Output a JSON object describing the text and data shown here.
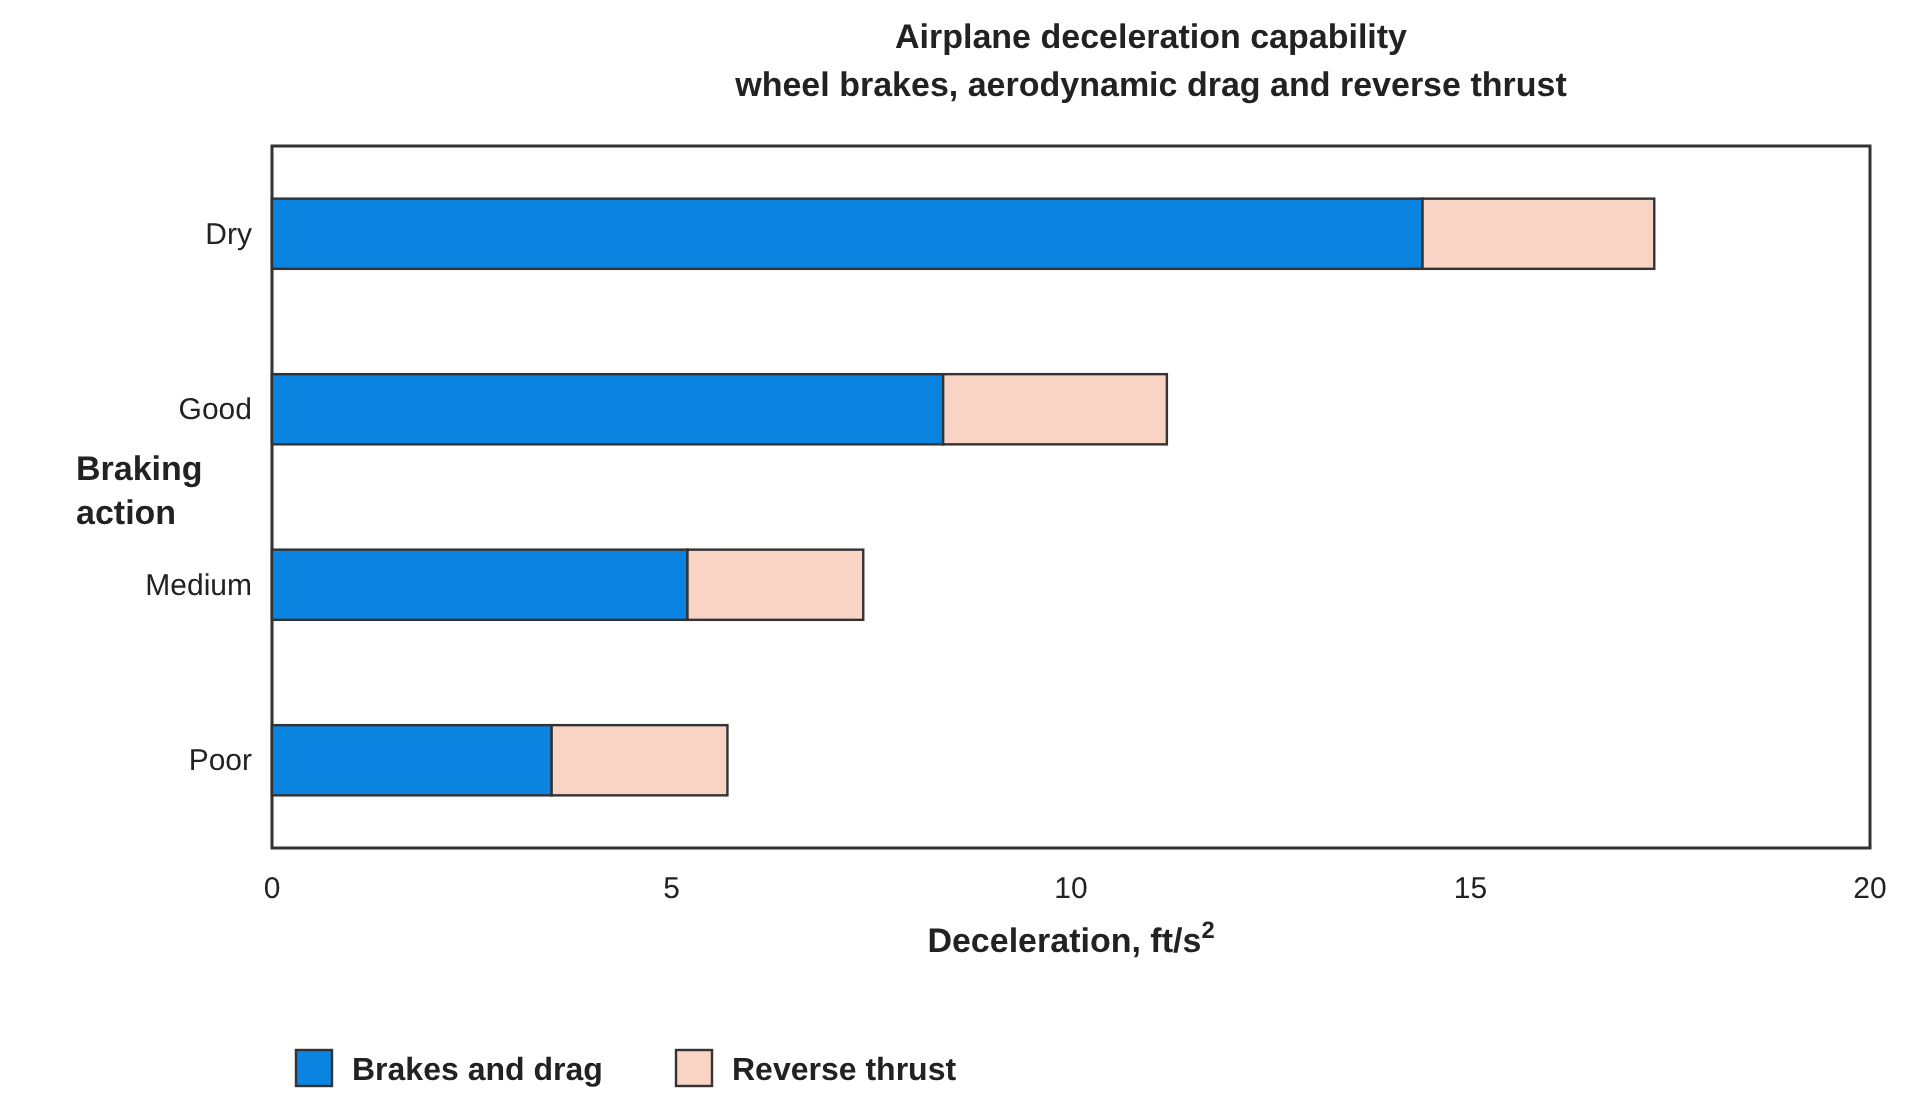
{
  "chart_data": {
    "type": "bar",
    "orientation": "horizontal",
    "stacked": true,
    "title": "Airplane deceleration capability\nwheel brakes, aerodynamic drag and reverse thrust",
    "xlabel": "Deceleration, ft/s$^{2}$",
    "ylabel": "Braking\naction",
    "categories": [
      "Dry",
      "Good",
      "Medium",
      "Poor"
    ],
    "series": [
      {
        "name": "Brakes and drag",
        "color": "#0a84e0",
        "values": [
          14.4,
          8.4,
          5.2,
          3.5
        ]
      },
      {
        "name": "Reverse thrust",
        "color": "#f9d3c4",
        "values": [
          2.9,
          2.8,
          2.2,
          2.2
        ]
      }
    ],
    "xlim": [
      0,
      20
    ],
    "xticks": [
      0,
      5,
      10,
      15,
      20
    ],
    "legend": "bottom left"
  }
}
